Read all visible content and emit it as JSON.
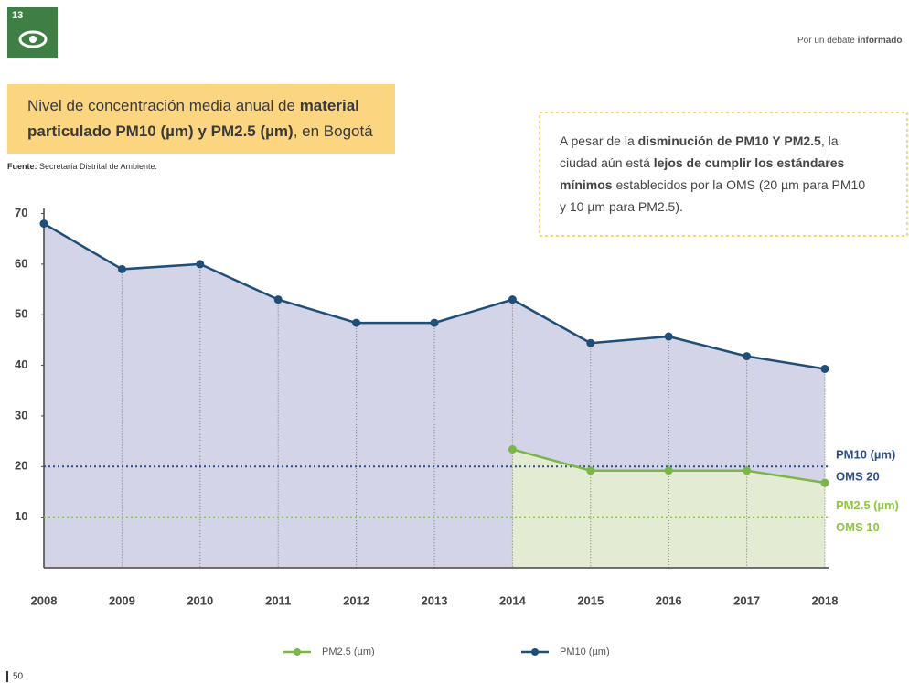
{
  "header": {
    "logo_number": "13",
    "tagline": [
      {
        "text": "Por un debate ",
        "bold": false
      },
      {
        "text": "informado",
        "bold": true
      }
    ],
    "page_number": "50"
  },
  "chart_data": {
    "type": "line",
    "title": [
      [
        {
          "text": "Nivel de concentración media anual de ",
          "bold": false
        },
        {
          "text": "material",
          "bold": true
        }
      ],
      [
        {
          "text": "particulado PM10 (µm) y PM2.5 (µm)",
          "bold": true
        },
        {
          "text": ", en Bogotá",
          "bold": false
        }
      ]
    ],
    "source": [
      {
        "text": "Fuente:",
        "bold": true
      },
      {
        "text": " Secretaría Distrital de Ambiente.",
        "bold": false
      }
    ],
    "annotation": [
      [
        {
          "text": "A pesar de la ",
          "bold": false
        },
        {
          "text": "disminución de PM10 Y PM2.5",
          "bold": true
        },
        {
          "text": ", la",
          "bold": false
        }
      ],
      [
        {
          "text": "ciudad aún está ",
          "bold": false
        },
        {
          "text": "lejos de cumplir los estándares",
          "bold": true
        }
      ],
      [
        {
          "text": "mínimos",
          "bold": true
        },
        {
          "text": " establecidos por la OMS (20 µm para PM10",
          "bold": false
        }
      ],
      [
        {
          "text": "y 10 µm para PM2.5).",
          "bold": false
        }
      ]
    ],
    "categories": [
      "2008",
      "2009",
      "2010",
      "2011",
      "2012",
      "2013",
      "2014",
      "2015",
      "2016",
      "2017",
      "2018"
    ],
    "series": [
      {
        "name": "PM2.5 (µm)",
        "color": "#7ab648",
        "fill": "#e3ebd3",
        "values": [
          null,
          null,
          null,
          null,
          null,
          null,
          23.4,
          19.2,
          19.2,
          19.2,
          16.8
        ]
      },
      {
        "name": "PM10 (µm)",
        "color": "#1f4e79",
        "fill": "#d3d4e7",
        "values": [
          68,
          59,
          60,
          53,
          48.4,
          48.4,
          53,
          44.4,
          45.7,
          41.8,
          39.3
        ]
      }
    ],
    "reference_lines": [
      {
        "value": 20,
        "color": "#2c4f8a",
        "labels": [
          "PM10 (µm)",
          "OMS 20"
        ]
      },
      {
        "value": 10,
        "color": "#8cc63f",
        "labels": [
          "PM2.5 (µm)",
          "OMS 10"
        ]
      }
    ],
    "ylim": [
      0,
      71
    ],
    "yticks": [
      10,
      20,
      30,
      40,
      50,
      60,
      70
    ],
    "legend": "bottom"
  }
}
